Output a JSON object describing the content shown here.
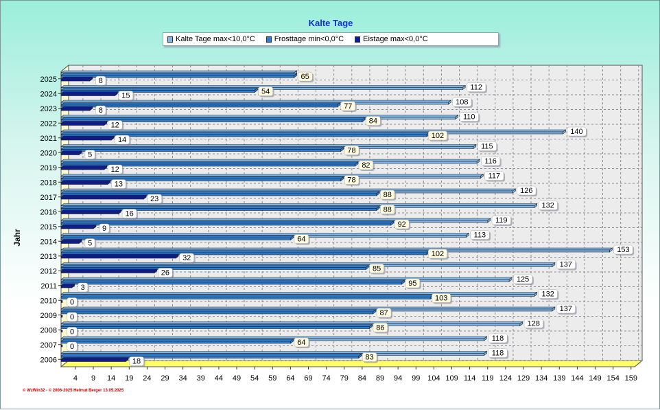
{
  "footer": "© WzWin32 - © 2006-2025 Helmut Berger 13.05.2025",
  "chart_data": {
    "type": "bar",
    "orientation": "horizontal",
    "title": "Kalte Tage",
    "ylabel": "Jahr",
    "xlabel": "",
    "xticks": [
      4,
      9,
      14,
      19,
      24,
      29,
      34,
      39,
      44,
      49,
      54,
      59,
      64,
      69,
      74,
      79,
      84,
      89,
      94,
      99,
      104,
      109,
      114,
      119,
      124,
      129,
      134,
      139,
      144,
      149,
      154,
      159
    ],
    "xlim": [
      0,
      160
    ],
    "grid": true,
    "legend_position": "top",
    "categories": [
      "2025",
      "2024",
      "2023",
      "2022",
      "2021",
      "2020",
      "2019",
      "2018",
      "2017",
      "2016",
      "2015",
      "2014",
      "2013",
      "2012",
      "2011",
      "2010",
      "2009",
      "2008",
      "2007",
      "2006"
    ],
    "series": [
      {
        "name": "Kalte Tage max<10,0°C",
        "color": "#7fb4e6",
        "values": [
          65,
          112,
          108,
          110,
          140,
          115,
          116,
          117,
          126,
          132,
          119,
          113,
          153,
          137,
          125,
          132,
          137,
          128,
          118,
          118
        ]
      },
      {
        "name": "Frosttage min<0,0°C",
        "color": "#2a7ed6",
        "values": [
          65,
          54,
          77,
          84,
          102,
          78,
          82,
          78,
          88,
          88,
          92,
          64,
          102,
          85,
          95,
          103,
          87,
          86,
          64,
          83
        ]
      },
      {
        "name": "Eistage max<0,0°C",
        "color": "#0d1c9a",
        "values": [
          8,
          15,
          8,
          12,
          14,
          5,
          12,
          13,
          23,
          16,
          9,
          5,
          32,
          26,
          3,
          0,
          0,
          0,
          0,
          18
        ]
      }
    ]
  }
}
